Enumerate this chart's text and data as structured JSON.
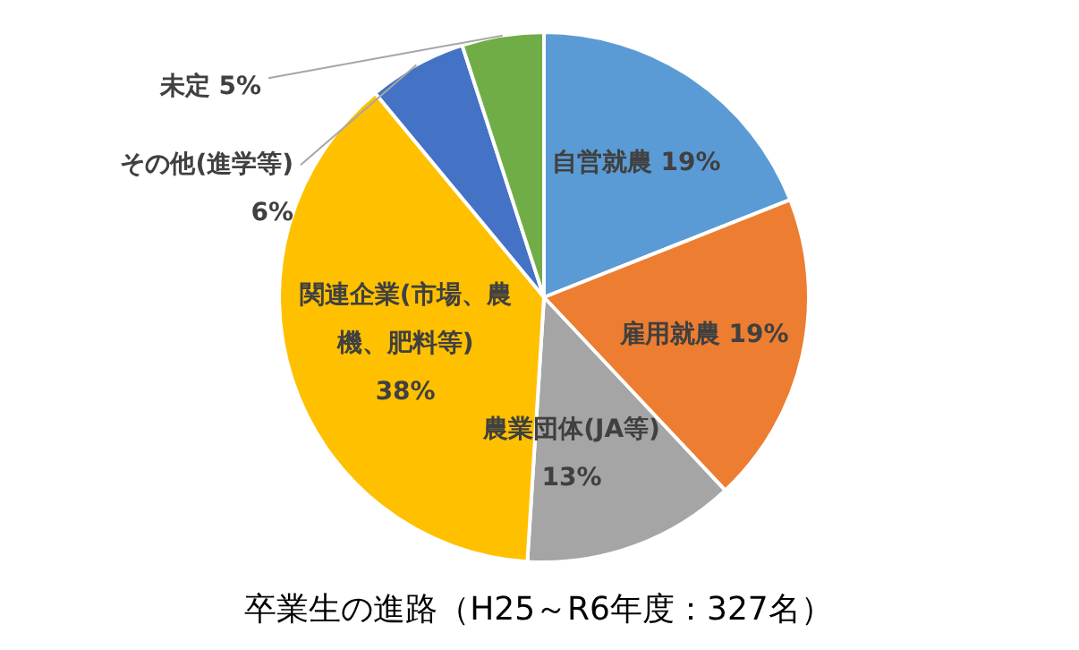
{
  "chart_data": {
    "type": "pie",
    "title": "卒業生の進路（H25～R6年度：327名）",
    "categories": [
      "自営就農",
      "雇用就農",
      "農業団体(JA等)",
      "関連企業(市場、農機、肥料等)",
      "その他(進学等)",
      "未定"
    ],
    "values": [
      19,
      19,
      13,
      38,
      6,
      5
    ],
    "value_labels": [
      "19%",
      "19%",
      "13%",
      "38%",
      "6%",
      "5%"
    ],
    "colors": [
      "#5b9bd5",
      "#ed7d31",
      "#a5a5a5",
      "#ffc000",
      "#4472c4",
      "#70ad47"
    ]
  }
}
